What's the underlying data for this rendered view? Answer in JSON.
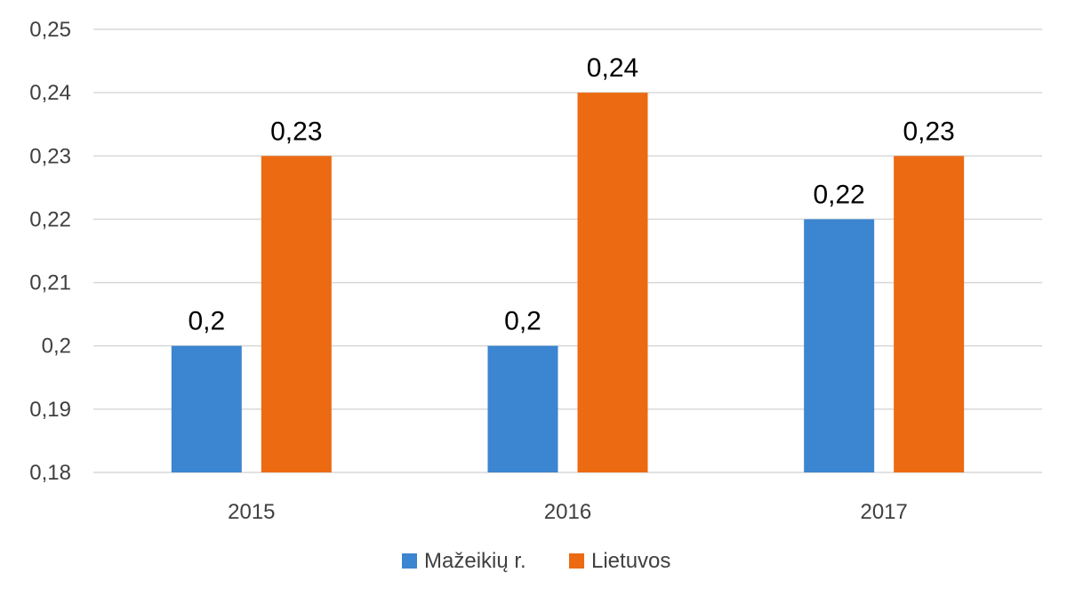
{
  "chart_data": {
    "type": "bar",
    "categories": [
      "2015",
      "2016",
      "2017"
    ],
    "series": [
      {
        "name": "Mažeikių r.",
        "color": "#3c85d0",
        "values": [
          0.2,
          0.2,
          0.22
        ],
        "labels": [
          "0,2",
          "0,2",
          "0,22"
        ]
      },
      {
        "name": "Lietuvos",
        "color": "#ec6a12",
        "values": [
          0.23,
          0.24,
          0.23
        ],
        "labels": [
          "0,23",
          "0,24",
          "0,23"
        ]
      }
    ],
    "y_ticks": [
      0.18,
      0.19,
      0.2,
      0.21,
      0.22,
      0.23,
      0.24,
      0.25
    ],
    "y_tick_labels": [
      "0,18",
      "0,19",
      "0,2",
      "0,21",
      "0,22",
      "0,23",
      "0,24",
      "0,25"
    ],
    "ylim": [
      0.18,
      0.25
    ],
    "grid": true,
    "legend_position": "bottom-center",
    "title": "",
    "xlabel": "",
    "ylabel": ""
  }
}
